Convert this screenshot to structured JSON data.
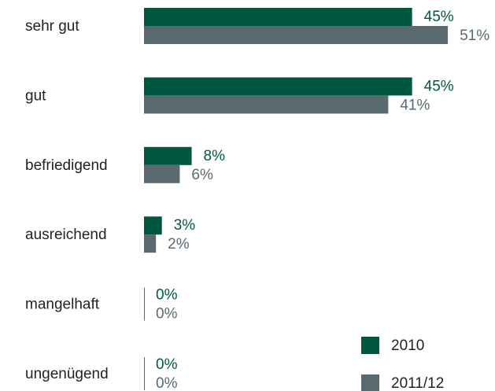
{
  "chart_data": {
    "type": "bar",
    "orientation": "horizontal",
    "categories": [
      "sehr gut",
      "gut",
      "befriedigend",
      "ausreichend",
      "mangelhaft",
      "ungenügend"
    ],
    "series": [
      {
        "name": "2010",
        "color": "#00573f",
        "values": [
          45,
          45,
          8,
          3,
          0,
          0
        ],
        "value_labels": [
          "45%",
          "45%",
          "8%",
          "3%",
          "0%",
          "0%"
        ]
      },
      {
        "name": "2011/12",
        "color": "#5a6870",
        "values": [
          51,
          41,
          6,
          2,
          0,
          0
        ],
        "value_labels": [
          "51%",
          "41%",
          "6%",
          "2%",
          "0%",
          "0%"
        ]
      }
    ]
  }
}
